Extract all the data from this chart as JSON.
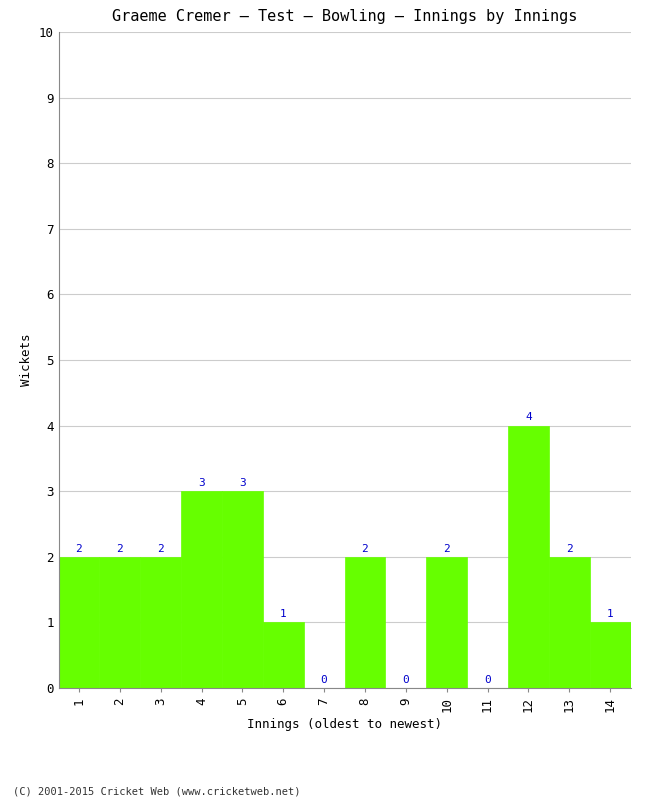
{
  "title": "Graeme Cremer – Test – Bowling – Innings by Innings",
  "xlabel": "Innings (oldest to newest)",
  "ylabel": "Wickets",
  "categories": [
    "1",
    "2",
    "3",
    "4",
    "5",
    "6",
    "7",
    "8",
    "9",
    "10",
    "11",
    "12",
    "13",
    "14"
  ],
  "values": [
    2,
    2,
    2,
    3,
    3,
    1,
    0,
    2,
    0,
    2,
    0,
    4,
    2,
    1
  ],
  "bar_color": "#66ff00",
  "bar_edge_color": "#66ff00",
  "label_color": "#0000cc",
  "background_color": "#ffffff",
  "ylim": [
    0,
    10
  ],
  "yticks": [
    0,
    1,
    2,
    3,
    4,
    5,
    6,
    7,
    8,
    9,
    10
  ],
  "grid_color": "#cccccc",
  "title_fontsize": 11,
  "axis_label_fontsize": 9,
  "tick_fontsize": 9,
  "value_label_fontsize": 8,
  "footer": "(C) 2001-2015 Cricket Web (www.cricketweb.net)"
}
